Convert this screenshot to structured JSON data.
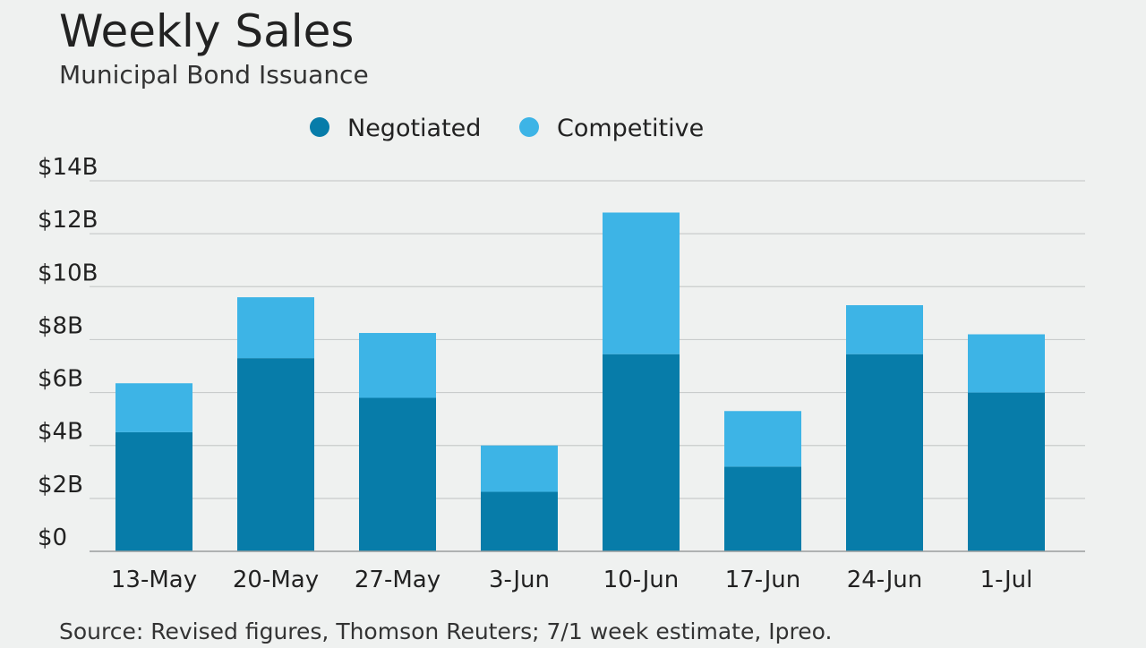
{
  "colors": {
    "background": "#eff1f0",
    "negotiated": "#077ca9",
    "competitive": "#3db4e6",
    "gridline": "#c9cccc",
    "axis": "#9a9d9d",
    "text": "#222222",
    "subtext": "#333333"
  },
  "chart_data": {
    "type": "bar",
    "stacked": true,
    "title": "Weekly Sales",
    "subtitle": "Municipal Bond Issuance",
    "source": "Source: Revised figures, Thomson Reuters; 7/1 week estimate, Ipreo.",
    "categories": [
      "13-May",
      "20-May",
      "27-May",
      "3-Jun",
      "10-Jun",
      "17-Jun",
      "24-Jun",
      "1-Jul"
    ],
    "series": [
      {
        "name": "Negotiated",
        "values": [
          4.5,
          7.3,
          5.8,
          2.25,
          7.45,
          3.2,
          7.45,
          6.0
        ]
      },
      {
        "name": "Competitive",
        "values": [
          1.85,
          2.3,
          2.45,
          1.75,
          5.35,
          2.1,
          1.85,
          2.2
        ]
      }
    ],
    "ylim": [
      0,
      14
    ],
    "yticks": [
      0,
      2,
      4,
      6,
      8,
      10,
      12,
      14
    ],
    "ytick_labels": [
      "$0",
      "$2B",
      "$4B",
      "$6B",
      "$8B",
      "$10B",
      "$12B",
      "$14B"
    ],
    "grid": true,
    "legend_position": "top-center"
  }
}
